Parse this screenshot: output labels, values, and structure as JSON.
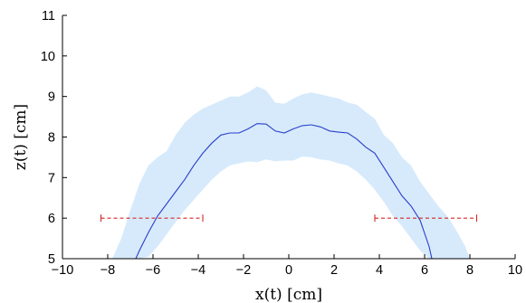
{
  "chart_data": {
    "type": "line",
    "title": "",
    "xlabel": "x(t)  [cm]",
    "ylabel": "z(t)  [cm]",
    "xlim": [
      -10,
      10
    ],
    "ylim": [
      5,
      11
    ],
    "grid": false,
    "x_ticks": [
      "−10",
      "−8",
      "−6",
      "−4",
      "−2",
      "0",
      "2",
      "4",
      "6",
      "8",
      "10"
    ],
    "y_ticks": [
      "5",
      "6",
      "7",
      "8",
      "9",
      "10",
      "11"
    ],
    "colors": {
      "line": "#2a3fc9",
      "band": "#d6eafc",
      "error_bar": "#d62728"
    },
    "series": [
      {
        "type": "line",
        "x": [
          -7.0,
          -6.6,
          -6.2,
          -5.8,
          -5.4,
          -5.0,
          -4.6,
          -4.2,
          -3.8,
          -3.4,
          -3.0,
          -2.6,
          -2.2,
          -1.8,
          -1.4,
          -1.0,
          -0.6,
          -0.2,
          0.2,
          0.6,
          1.0,
          1.4,
          1.8,
          2.2,
          2.6,
          3.0,
          3.4,
          3.8,
          4.2,
          4.6,
          5.0,
          5.4,
          5.8,
          6.2,
          6.4
        ],
        "y": [
          4.7,
          5.2,
          5.65,
          6.05,
          6.35,
          6.65,
          6.95,
          7.3,
          7.6,
          7.85,
          8.05,
          8.1,
          8.1,
          8.2,
          8.33,
          8.32,
          8.15,
          8.1,
          8.2,
          8.28,
          8.3,
          8.25,
          8.15,
          8.12,
          8.1,
          7.95,
          7.75,
          7.6,
          7.25,
          6.9,
          6.55,
          6.3,
          5.95,
          5.3,
          4.8
        ]
      },
      {
        "type": "band",
        "x": [
          -7.8,
          -7.4,
          -7.0,
          -6.6,
          -6.2,
          -5.8,
          -5.4,
          -5.0,
          -4.6,
          -4.2,
          -3.8,
          -3.4,
          -3.0,
          -2.6,
          -2.2,
          -1.8,
          -1.4,
          -1.0,
          -0.6,
          -0.2,
          0.2,
          0.6,
          1.0,
          1.4,
          1.8,
          2.2,
          2.6,
          3.0,
          3.4,
          3.8,
          4.2,
          4.6,
          5.0,
          5.4,
          5.8,
          6.2,
          6.6,
          7.0,
          7.4,
          7.8,
          8.0
        ],
        "upper": [
          5.0,
          5.5,
          6.2,
          6.85,
          7.3,
          7.5,
          7.65,
          8.05,
          8.35,
          8.55,
          8.7,
          8.8,
          8.9,
          9.0,
          9.0,
          9.1,
          9.25,
          9.15,
          8.85,
          8.82,
          8.95,
          9.05,
          9.1,
          9.05,
          9.0,
          8.95,
          8.85,
          8.8,
          8.62,
          8.45,
          8.05,
          7.85,
          7.5,
          7.3,
          6.9,
          6.6,
          6.3,
          6.05,
          5.7,
          5.3,
          5.0
        ],
        "lower": [
          5.0,
          5.0,
          5.0,
          5.0,
          5.05,
          5.3,
          5.6,
          5.9,
          6.2,
          6.45,
          6.7,
          6.95,
          7.15,
          7.3,
          7.35,
          7.4,
          7.38,
          7.45,
          7.4,
          7.42,
          7.42,
          7.52,
          7.5,
          7.45,
          7.42,
          7.35,
          7.3,
          7.15,
          6.95,
          6.7,
          6.4,
          6.05,
          5.8,
          5.5,
          5.2,
          5.0,
          5.0,
          5.0,
          5.0,
          5.0,
          5.0
        ]
      },
      {
        "type": "error_bar",
        "y": 6,
        "ranges": [
          [
            -8.3,
            -3.8
          ],
          [
            3.8,
            8.3
          ]
        ]
      }
    ]
  }
}
